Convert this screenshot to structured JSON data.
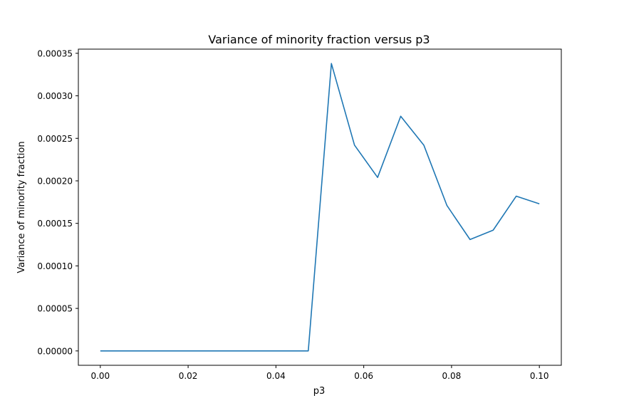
{
  "chart_data": {
    "type": "line",
    "title": "Variance of minority fraction versus p3",
    "xlabel": "p3",
    "ylabel": "Variance of minority fraction",
    "xlim": [
      -0.005,
      0.105
    ],
    "ylim": [
      -1.69e-05,
      0.0003549
    ],
    "x_ticks": [
      0.0,
      0.02,
      0.04,
      0.06,
      0.08,
      0.1
    ],
    "x_tick_labels": [
      "0.00",
      "0.02",
      "0.04",
      "0.06",
      "0.08",
      "0.10"
    ],
    "y_ticks": [
      0.0,
      5e-05,
      0.0001,
      0.00015,
      0.0002,
      0.00025,
      0.0003,
      0.00035
    ],
    "y_tick_labels": [
      "0.00000",
      "0.00005",
      "0.00010",
      "0.00015",
      "0.00020",
      "0.00025",
      "0.00030",
      "0.00035"
    ],
    "grid": false,
    "series": [
      {
        "color": "#1f77b4",
        "x": [
          0.0,
          0.005263,
          0.010526,
          0.015789,
          0.021053,
          0.026316,
          0.031579,
          0.036842,
          0.042105,
          0.047368,
          0.052632,
          0.057895,
          0.063158,
          0.068421,
          0.073684,
          0.078947,
          0.084211,
          0.089474,
          0.094737,
          0.1
        ],
        "values": [
          0,
          0,
          0,
          0,
          0,
          0,
          0,
          0,
          0,
          0,
          0.000338,
          0.000242,
          0.000204,
          0.000276,
          0.000242,
          0.000171,
          0.000131,
          0.000142,
          0.000182,
          0.000173
        ]
      }
    ]
  }
}
